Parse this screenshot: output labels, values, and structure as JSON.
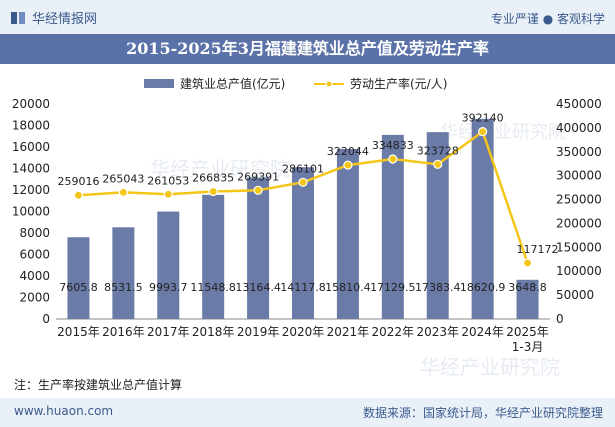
{
  "header": {
    "brand": "华经情报网",
    "tagline": "专业严谨 ● 客观科学"
  },
  "title": "2015-2025年3月福建建筑业总产值及劳动生产率",
  "note": "注：生产率按建筑业总产值计算",
  "footer": {
    "url": "www.huaon.com",
    "source": "数据来源：国家统计局，华经产业研究院整理"
  },
  "watermark": "华经产业研究院",
  "colors": {
    "bar": "#6a7ba8",
    "line": "#f5c518",
    "title_bg": "#5b72a8",
    "band": "#eaf0f8"
  },
  "chart_data": {
    "type": "bar",
    "categories": [
      "2015年",
      "2016年",
      "2017年",
      "2018年",
      "2019年",
      "2020年",
      "2021年",
      "2022年",
      "2023年",
      "2024年",
      "2025年1-3月"
    ],
    "series": [
      {
        "name": "建筑业总产值(亿元)",
        "type": "bar",
        "axis": "left",
        "values": [
          7605.8,
          8531.5,
          9993.7,
          11548.8,
          13164.4,
          14117.8,
          15810.4,
          17129.5,
          17383.4,
          18620.9,
          3648.8
        ],
        "labels": [
          "7605.8",
          "8531.5",
          "9993.7",
          "11548.8",
          "13164.4",
          "14117.8",
          "15810.4",
          "17129.5",
          "17383.4",
          "18620.9",
          "3648.8"
        ]
      },
      {
        "name": "劳动生产率(元/人)",
        "type": "line",
        "axis": "right",
        "values": [
          259016,
          265043,
          261053,
          266835,
          269391,
          286101,
          322044,
          334833,
          323728,
          392140,
          117172
        ],
        "labels": [
          "259016",
          "265043",
          "261053",
          "266835",
          "269391",
          "286101",
          "322044",
          "334833",
          "323728",
          "392140",
          "117172"
        ]
      }
    ],
    "y_left": {
      "range": [
        0,
        20000
      ],
      "ticks": [
        "0",
        "2000",
        "4000",
        "6000",
        "8000",
        "10000",
        "12000",
        "14000",
        "16000",
        "18000",
        "20000"
      ]
    },
    "y_right": {
      "range": [
        0,
        450000
      ],
      "ticks": [
        "0",
        "50000",
        "100000",
        "150000",
        "200000",
        "250000",
        "300000",
        "350000",
        "400000",
        "450000"
      ]
    },
    "legend_position": "top-center",
    "grid": false
  }
}
